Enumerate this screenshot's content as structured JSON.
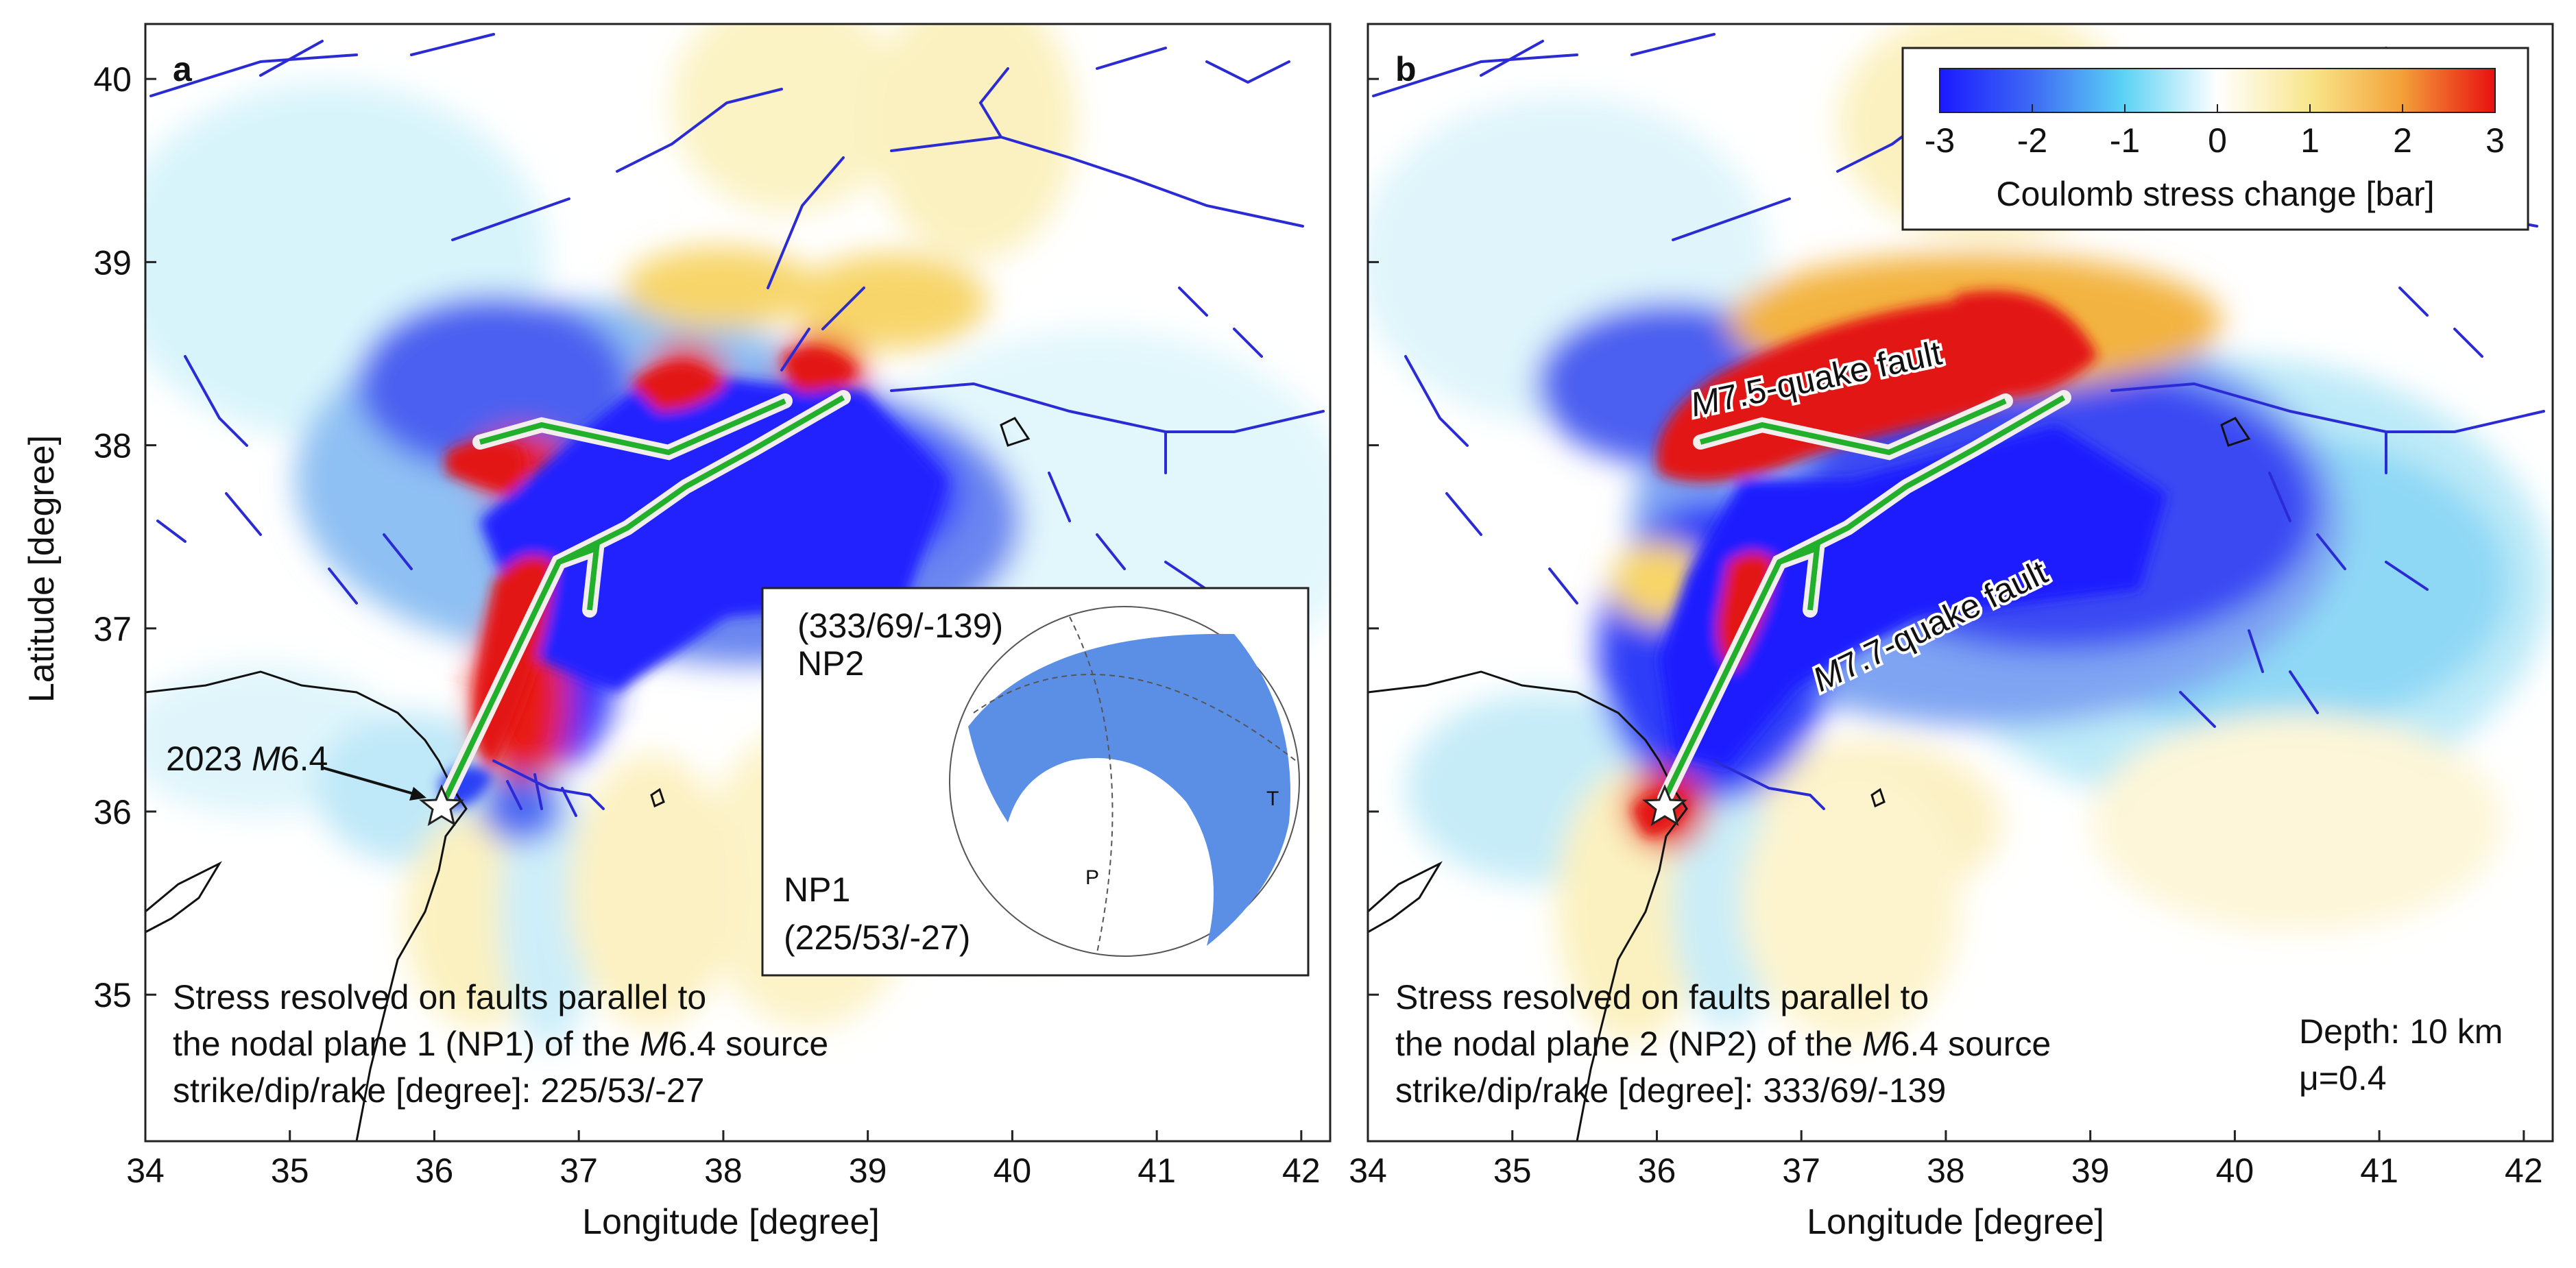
{
  "panels": [
    {
      "label": "a",
      "annotation": [
        "Stress resolved on faults parallel to",
        "the nodal plane 1 (NP1) of the M6.4 source",
        "strike/dip/rake [degree]: 225/53/-27"
      ],
      "event_label": "2023 M6.4",
      "inset": {
        "np2_title": "(333/69/-139)",
        "np2_label": "NP2",
        "np1_label": "NP1",
        "np1_title": "(225/53/-27)",
        "p_label": "P",
        "t_label": "T"
      }
    },
    {
      "label": "b",
      "annotation": [
        "Stress resolved on faults parallel to",
        "the nodal plane 2 (NP2) of the M6.4 source",
        "strike/dip/rake [degree]: 333/69/-139"
      ],
      "fault_labels": [
        "M7.5-quake fault",
        "M7.7-quake fault"
      ],
      "params": [
        "Depth: 10 km",
        "μ=0.4"
      ]
    }
  ],
  "axes": {
    "xlabel": "Longitude [degree]",
    "ylabel": "Latitude [degree]",
    "xticks": [
      "34",
      "35",
      "36",
      "37",
      "38",
      "39",
      "40",
      "41",
      "42"
    ],
    "yticks": [
      "40",
      "39",
      "38",
      "37",
      "36",
      "35"
    ],
    "xlim": [
      34,
      42.2
    ],
    "ylim": [
      34.2,
      40.3
    ]
  },
  "colorbar": {
    "title": "Coulomb stress change [bar]",
    "ticks": [
      "-3",
      "-2",
      "-1",
      "0",
      "1",
      "2",
      "3"
    ],
    "range": [
      -3,
      3
    ],
    "colors": [
      "#1a1aff",
      "#3f6cf5",
      "#5bd2f5",
      "#ffffff",
      "#f8e58a",
      "#f3a23a",
      "#e81010"
    ]
  },
  "epicenter": {
    "lon": 36.02,
    "lat": 36.03
  },
  "colors": {
    "fault_lines": "#2b2bd6",
    "coastline": "#111111",
    "rupture_green": "#22b02c",
    "rupture_white": "#f2eeee",
    "mechanism_fill": "#5b8fe6"
  }
}
